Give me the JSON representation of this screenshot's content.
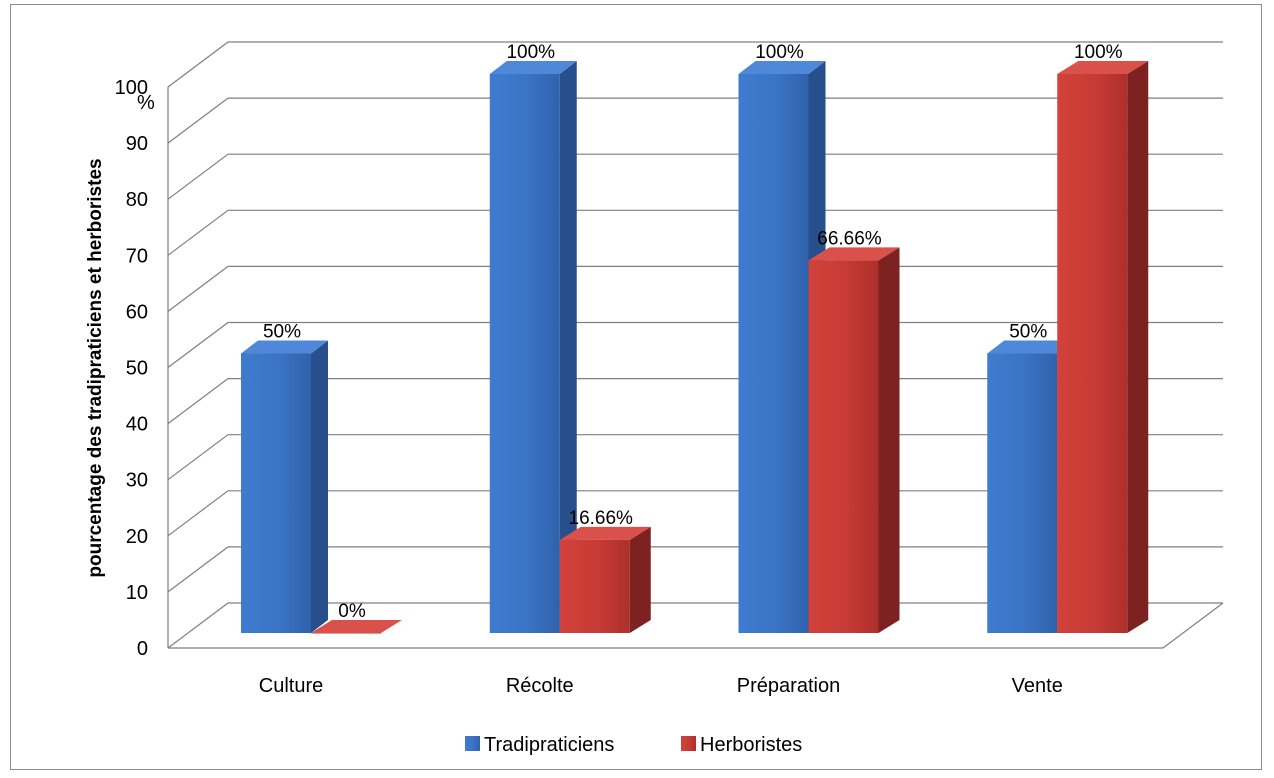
{
  "chart_data": {
    "type": "bar",
    "categories": [
      "Culture",
      "Récolte",
      "Préparation",
      "Vente"
    ],
    "series": [
      {
        "name": "Tradipraticiens",
        "values": [
          50,
          100,
          100,
          50
        ],
        "labels": [
          "50%",
          "100%",
          "100%",
          "50%"
        ],
        "color": "#3a73c4"
      },
      {
        "name": "Herboristes",
        "values": [
          0,
          16.66,
          66.66,
          100
        ],
        "labels": [
          "0%",
          "16.66%",
          "66.66%",
          "100%"
        ],
        "color": "#c73a35"
      }
    ],
    "ylabel": "pourcentage des tradipraticiens et herboristes",
    "ylim": [
      0,
      100
    ],
    "yticks": [
      "0",
      "10",
      "20",
      "30",
      "40",
      "50",
      "60",
      "70",
      "80",
      "90",
      "100"
    ],
    "yunit": "%",
    "grid": true,
    "legend": "bottom",
    "style": "3d-clustered-column"
  }
}
